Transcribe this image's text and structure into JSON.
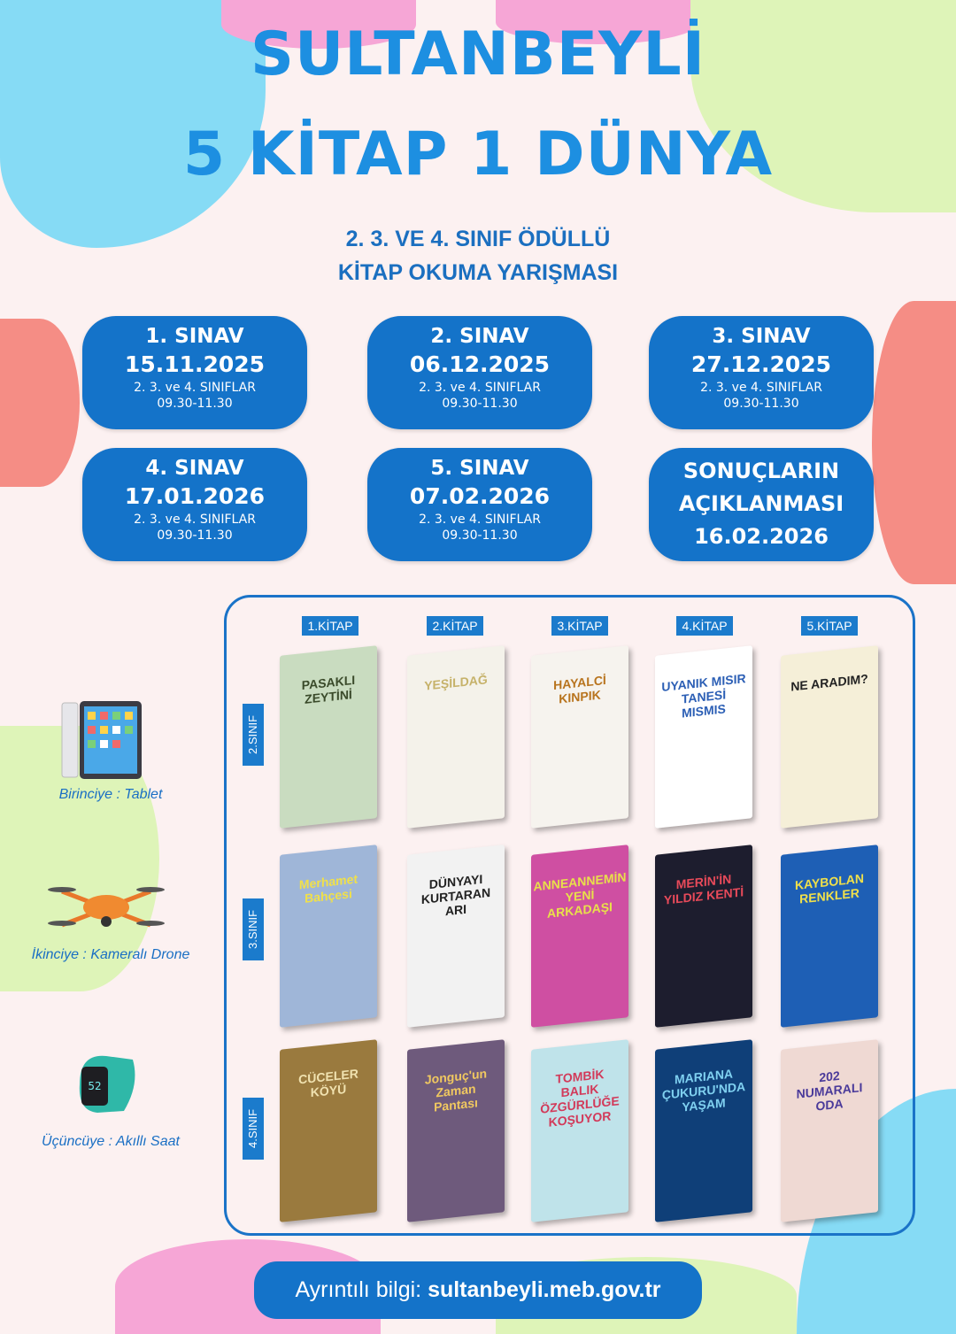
{
  "header": {
    "title_line1": "SULTANBEYLİ",
    "title_line2": "5 KİTAP 1 DÜNYA",
    "subtitle_line1": "2. 3. VE 4. SINIF ÖDÜLLÜ",
    "subtitle_line2": "KİTAP OKUMA YARIŞMASI"
  },
  "exams": [
    {
      "name": "1. SINAV",
      "date": "15.11.2025",
      "classes": "2. 3. ve 4. SINIFLAR",
      "time": "09.30-11.30"
    },
    {
      "name": "2. SINAV",
      "date": "06.12.2025",
      "classes": "2. 3. ve 4. SINIFLAR",
      "time": "09.30-11.30"
    },
    {
      "name": "3. SINAV",
      "date": "27.12.2025",
      "classes": "2. 3. ve 4. SINIFLAR",
      "time": "09.30-11.30"
    },
    {
      "name": "4. SINAV",
      "date": "17.01.2026",
      "classes": "2. 3. ve 4. SINIFLAR",
      "time": "09.30-11.30"
    },
    {
      "name": "5. SINAV",
      "date": "07.02.2026",
      "classes": "2. 3. ve 4. SINIFLAR",
      "time": "09.30-11.30"
    }
  ],
  "results": {
    "line1": "SONUÇLARIN",
    "line2": "AÇIKLANMASI",
    "date": "16.02.2026"
  },
  "book_columns": [
    "1.KİTAP",
    "2.KİTAP",
    "3.KİTAP",
    "4.KİTAP",
    "5.KİTAP"
  ],
  "grades": [
    {
      "label": "2.SINIF",
      "books": [
        "PASAKLI ZEYTİNİ",
        "YEŞİLDAĞ",
        "HAYALCİ KINPIK",
        "UYANIK MISIR TANESİ MISMIS",
        "NE ARADIM?"
      ]
    },
    {
      "label": "3.SINIF",
      "books": [
        "Merhamet Bahçesi",
        "DÜNYAYI KURTARAN ARI",
        "ANNEANNEMİN YENİ ARKADAŞI",
        "MERİN'İN YILDIZ KENTİ",
        "KAYBOLAN RENKLER"
      ]
    },
    {
      "label": "4.SINIF",
      "books": [
        "CÜCELER KÖYÜ",
        "Jonguç'un Zaman Pantası",
        "TOMBİK BALIK ÖZGÜRLÜĞE KOŞUYOR",
        "MARIANA ÇUKURU'NDA YAŞAM",
        "202 NUMARALI ODA"
      ]
    }
  ],
  "book_colors": [
    [
      "#c9dcc0",
      "#f4f2ea",
      "#f6f3ee",
      "#ffffff",
      "#f5efd8"
    ],
    [
      "#9fb6d8",
      "#f2f2f2",
      "#cf4fa2",
      "#1d1d2e",
      "#1e5fb5"
    ],
    [
      "#9a7a3e",
      "#6e5a7c",
      "#bfe3ea",
      "#0f3f78",
      "#efd9d3"
    ]
  ],
  "book_text_colors": [
    [
      "#3a4a2a",
      "#c6b26a",
      "#b8741e",
      "#2c5fb5",
      "#222222"
    ],
    [
      "#f0e04a",
      "#222222",
      "#e8e04a",
      "#e84a5a",
      "#f0e04a"
    ],
    [
      "#f0e2b0",
      "#f0c860",
      "#d23a5a",
      "#7fd0f0",
      "#4a3a9a"
    ]
  ],
  "prizes": [
    {
      "label": "Birinciye : Tablet",
      "icon": "tablet-icon"
    },
    {
      "label": "İkinciye : Kameralı Drone",
      "icon": "drone-icon"
    },
    {
      "label": "Üçüncüye : Akıllı Saat",
      "icon": "smartwatch-icon"
    }
  ],
  "footer": {
    "label": "Ayrıntılı bilgi:",
    "url": "sultanbeyli.meb.gov.tr"
  },
  "colors": {
    "primary_blue": "#1473c9",
    "title_blue": "#1d8fe1"
  }
}
